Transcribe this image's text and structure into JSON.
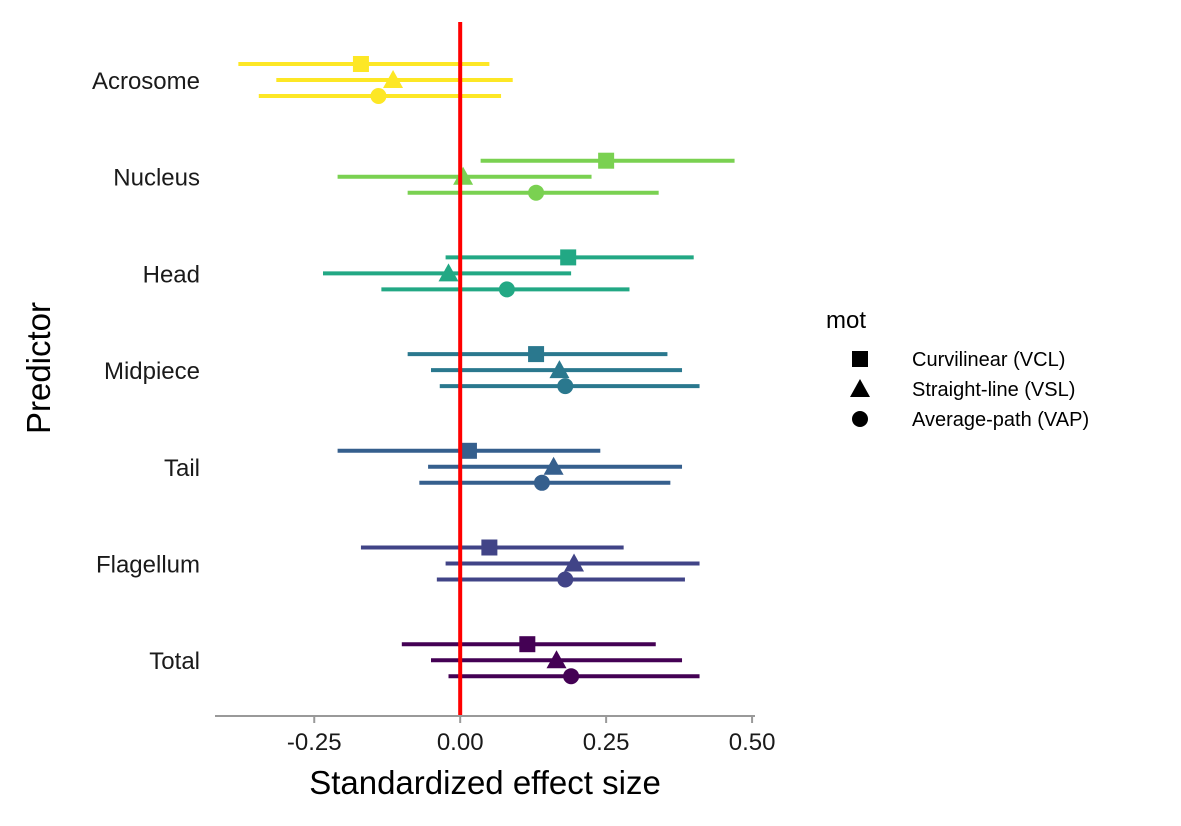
{
  "chart_data": {
    "type": "scatter",
    "subtype": "forest-plot",
    "title": "",
    "xlabel": "Standardized effect size",
    "ylabel": "Predictor",
    "xlim": [
      -0.42,
      0.505
    ],
    "xticks": [
      -0.25,
      0.0,
      0.25,
      0.5
    ],
    "xtick_labels": [
      "-0.25",
      "0.00",
      "0.25",
      "0.50"
    ],
    "reference_line": {
      "x": 0.0,
      "color": "#ff0000"
    },
    "grid": false,
    "legend": {
      "title": "mot",
      "position": "right",
      "items": [
        {
          "label": "Curvilinear (VCL)",
          "shape": "square"
        },
        {
          "label": "Straight-line (VSL)",
          "shape": "triangle"
        },
        {
          "label": "Average-path (VAP)",
          "shape": "circle"
        }
      ]
    },
    "categories": [
      "Acrosome",
      "Nucleus",
      "Head",
      "Midpiece",
      "Tail",
      "Flagellum",
      "Total"
    ],
    "category_colors": {
      "Acrosome": "#fde725",
      "Nucleus": "#7ad151",
      "Head": "#22a884",
      "Midpiece": "#2a788e",
      "Tail": "#355f8d",
      "Flagellum": "#414487",
      "Total": "#440154"
    },
    "series": [
      {
        "name": "Curvilinear (VCL)",
        "shape": "square",
        "estimates": [
          -0.17,
          0.25,
          0.185,
          0.13,
          0.015,
          0.05,
          0.115
        ],
        "lower": [
          -0.38,
          0.035,
          -0.025,
          -0.09,
          -0.21,
          -0.17,
          -0.1
        ],
        "upper": [
          0.05,
          0.47,
          0.4,
          0.355,
          0.24,
          0.28,
          0.335
        ]
      },
      {
        "name": "Straight-line (VSL)",
        "shape": "triangle",
        "estimates": [
          -0.115,
          0.005,
          -0.02,
          0.17,
          0.16,
          0.195,
          0.165
        ],
        "lower": [
          -0.315,
          -0.21,
          -0.235,
          -0.05,
          -0.055,
          -0.025,
          -0.05
        ],
        "upper": [
          0.09,
          0.225,
          0.19,
          0.38,
          0.38,
          0.41,
          0.38
        ]
      },
      {
        "name": "Average-path (VAP)",
        "shape": "circle",
        "estimates": [
          -0.14,
          0.13,
          0.08,
          0.18,
          0.14,
          0.18,
          0.19
        ],
        "lower": [
          -0.345,
          -0.09,
          -0.135,
          -0.035,
          -0.07,
          -0.04,
          -0.02
        ],
        "upper": [
          0.07,
          0.34,
          0.29,
          0.41,
          0.36,
          0.385,
          0.41
        ]
      }
    ]
  }
}
